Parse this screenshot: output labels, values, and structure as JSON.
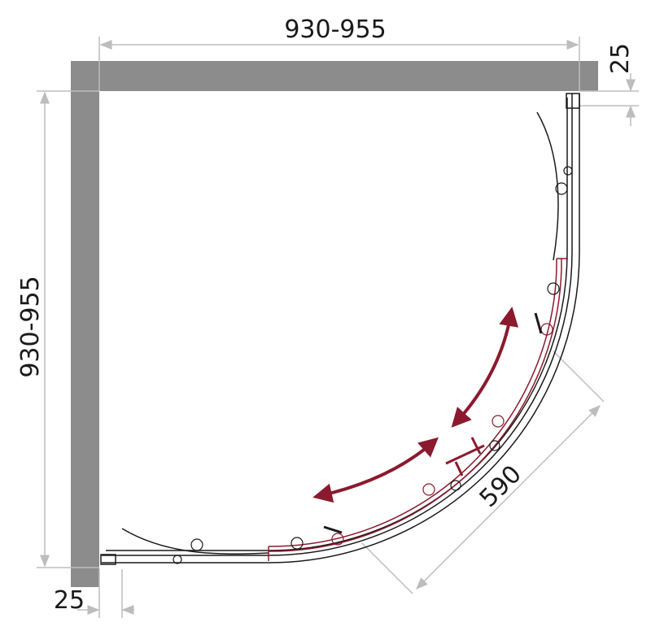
{
  "dimensions": {
    "top_width": "930-955",
    "left_depth": "930-955",
    "right_wall_offset": "25",
    "bottom_wall_offset": "25",
    "door_opening": "590"
  },
  "colors": {
    "wall": "#8c8c8c",
    "dimension_line": "#bdbdbd",
    "frame": "#1a1a1a",
    "sliding_door": "#8b1a2e"
  }
}
